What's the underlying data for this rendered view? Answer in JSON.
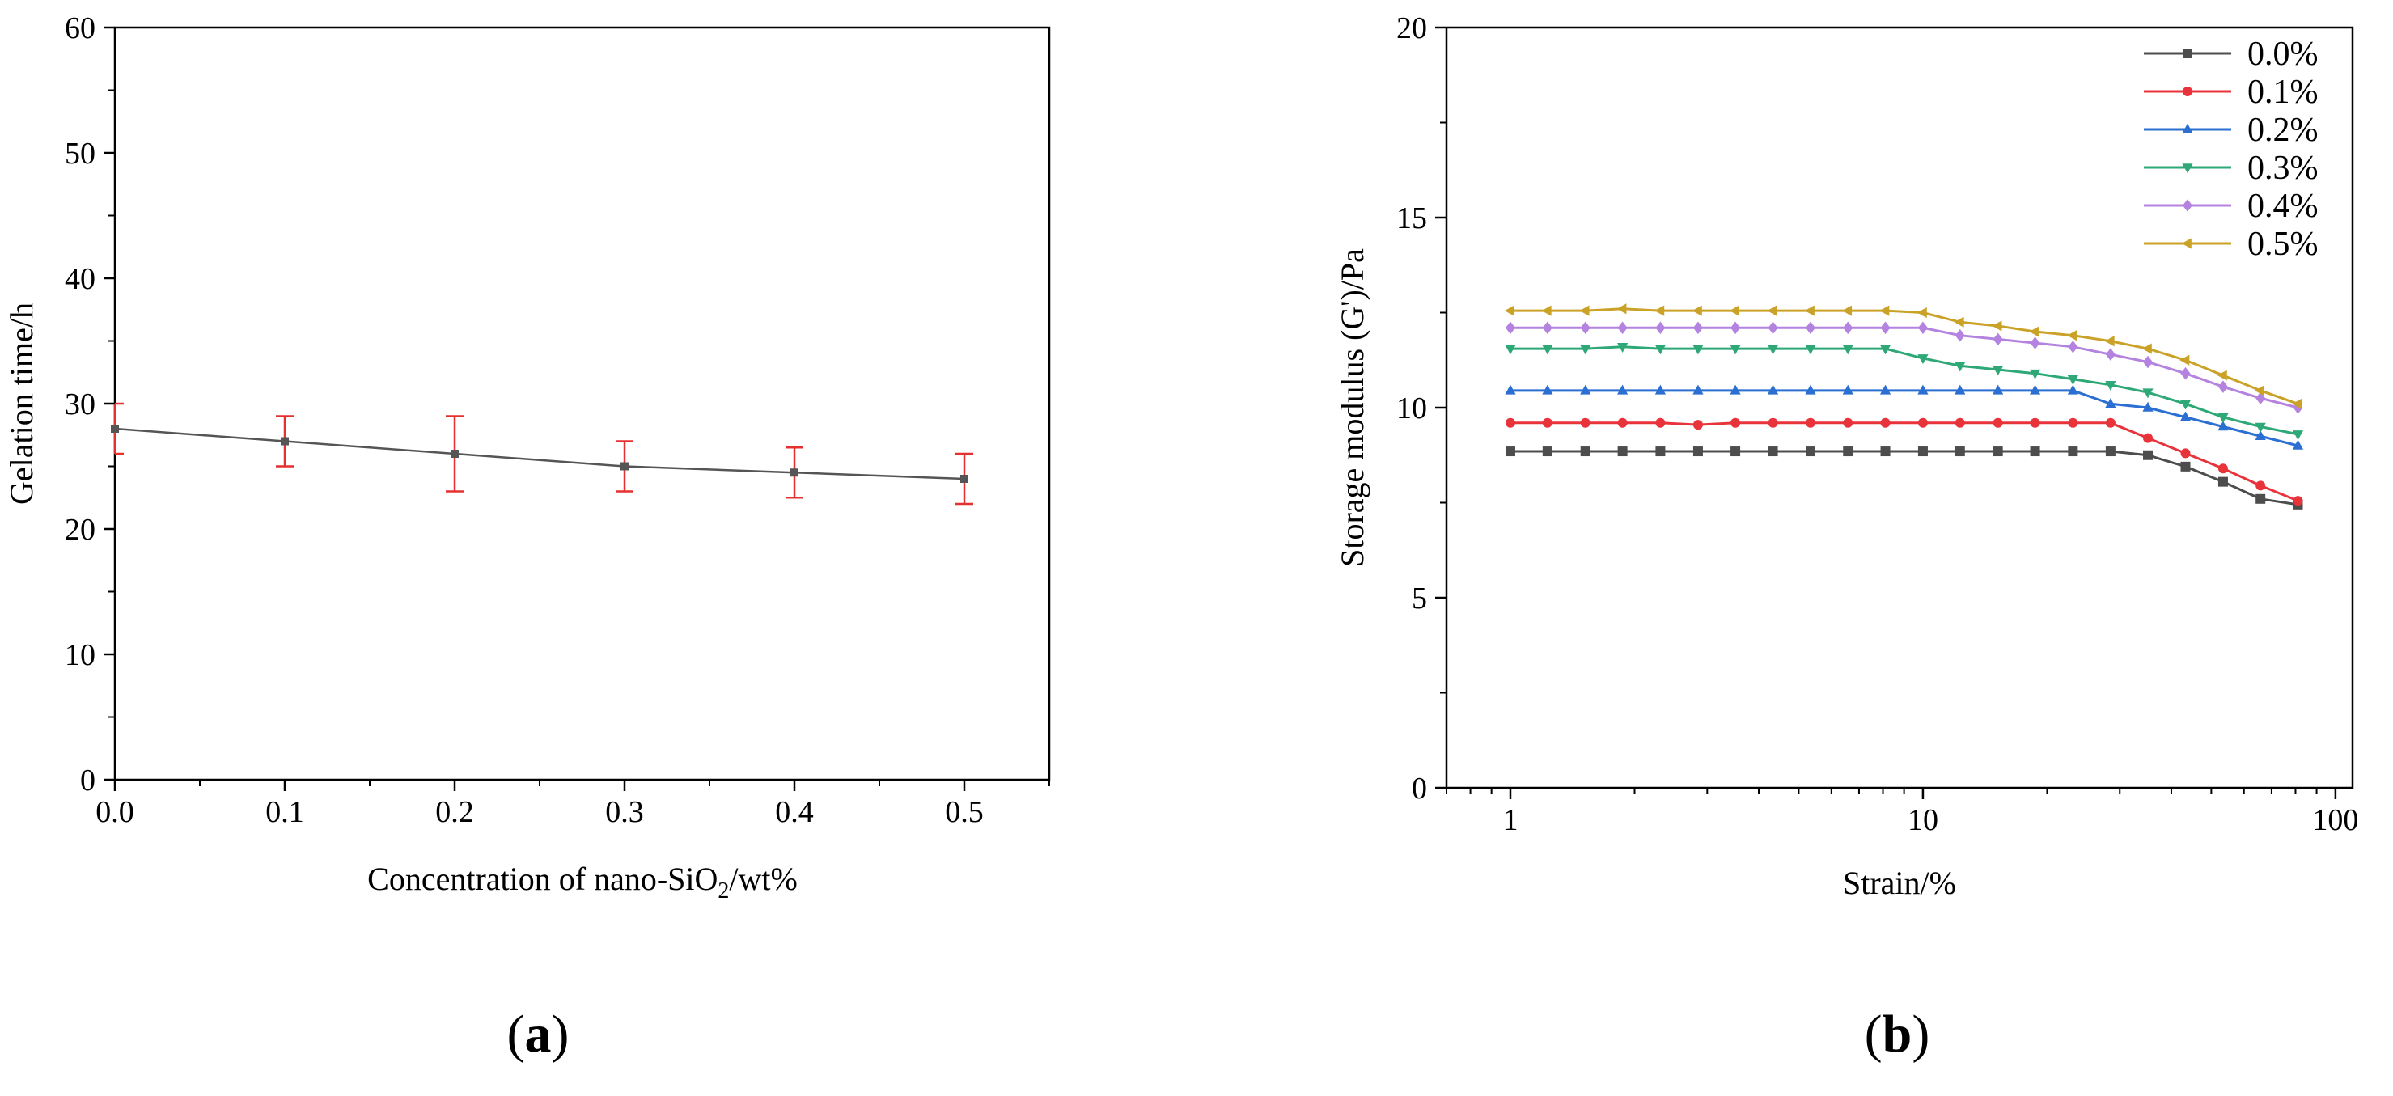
{
  "panels": [
    {
      "label_open": "(",
      "label_letter": "a",
      "label_close": ")"
    },
    {
      "label_open": "(",
      "label_letter": "b",
      "label_close": ")"
    }
  ],
  "chart_data": [
    {
      "type": "line",
      "xlabel_main": "Concentration of nano-SiO",
      "xlabel_sub": "2",
      "xlabel_tail": "/wt%",
      "ylabel": "Gelation time/h",
      "xlim": [
        0,
        0.55
      ],
      "ylim": [
        0,
        60
      ],
      "xticks": [
        0.0,
        0.1,
        0.2,
        0.3,
        0.4,
        0.5
      ],
      "xtick_labels": [
        "0.0",
        "0.1",
        "0.2",
        "0.3",
        "0.4",
        "0.5"
      ],
      "yticks": [
        0,
        10,
        20,
        30,
        40,
        50,
        60
      ],
      "ytick_labels": [
        "0",
        "10",
        "20",
        "30",
        "40",
        "50",
        "60"
      ],
      "series": [
        {
          "name": "Gelation time",
          "color": "#555555",
          "error_color": "#e53030",
          "x": [
            0.0,
            0.1,
            0.2,
            0.3,
            0.4,
            0.5
          ],
          "y": [
            28,
            27,
            26,
            25,
            24.5,
            24
          ],
          "error": [
            2,
            2,
            3,
            2,
            2,
            2
          ]
        }
      ]
    },
    {
      "type": "line",
      "xscale": "log",
      "xlabel": "Strain/%",
      "ylabel": "Storage modulus (G')/Pa",
      "xlim": [
        0.7,
        110
      ],
      "ylim": [
        0,
        20
      ],
      "xticks": [
        1,
        10,
        100
      ],
      "xtick_labels": [
        "1",
        "10",
        "100"
      ],
      "yticks": [
        0,
        5,
        10,
        15,
        20
      ],
      "ytick_labels": [
        "0",
        "5",
        "10",
        "15",
        "20"
      ],
      "legend_position": "top-right",
      "x": [
        1,
        1.23,
        1.52,
        1.87,
        2.31,
        2.85,
        3.51,
        4.33,
        5.34,
        6.58,
        8.11,
        10,
        12.3,
        15.2,
        18.7,
        23.1,
        28.5,
        35.1,
        43.3,
        53.4,
        65.8,
        81.1
      ],
      "series": [
        {
          "name": "0.0%",
          "color": "#4d4d4d",
          "marker": "square",
          "values": [
            8.85,
            8.85,
            8.85,
            8.85,
            8.85,
            8.85,
            8.85,
            8.85,
            8.85,
            8.85,
            8.85,
            8.85,
            8.85,
            8.85,
            8.85,
            8.85,
            8.85,
            8.75,
            8.45,
            8.05,
            7.6,
            7.45
          ]
        },
        {
          "name": "0.1%",
          "color": "#e8333a",
          "marker": "circle",
          "values": [
            9.6,
            9.6,
            9.6,
            9.6,
            9.6,
            9.55,
            9.6,
            9.6,
            9.6,
            9.6,
            9.6,
            9.6,
            9.6,
            9.6,
            9.6,
            9.6,
            9.6,
            9.2,
            8.8,
            8.4,
            7.95,
            7.55
          ]
        },
        {
          "name": "0.2%",
          "color": "#2a6fd1",
          "marker": "triangle-up",
          "values": [
            10.45,
            10.45,
            10.45,
            10.45,
            10.45,
            10.45,
            10.45,
            10.45,
            10.45,
            10.45,
            10.45,
            10.45,
            10.45,
            10.45,
            10.45,
            10.45,
            10.1,
            10.0,
            9.75,
            9.5,
            9.25,
            9.0
          ]
        },
        {
          "name": "0.3%",
          "color": "#2fa877",
          "marker": "triangle-down",
          "values": [
            11.55,
            11.55,
            11.55,
            11.6,
            11.55,
            11.55,
            11.55,
            11.55,
            11.55,
            11.55,
            11.55,
            11.3,
            11.1,
            11.0,
            10.9,
            10.75,
            10.6,
            10.4,
            10.1,
            9.75,
            9.5,
            9.3
          ]
        },
        {
          "name": "0.4%",
          "color": "#b483e0",
          "marker": "diamond",
          "values": [
            12.1,
            12.1,
            12.1,
            12.1,
            12.1,
            12.1,
            12.1,
            12.1,
            12.1,
            12.1,
            12.1,
            12.1,
            11.9,
            11.8,
            11.7,
            11.6,
            11.4,
            11.2,
            10.9,
            10.55,
            10.25,
            10.0
          ]
        },
        {
          "name": "0.5%",
          "color": "#c9a227",
          "marker": "left-triangle",
          "values": [
            12.55,
            12.55,
            12.55,
            12.6,
            12.55,
            12.55,
            12.55,
            12.55,
            12.55,
            12.55,
            12.55,
            12.5,
            12.25,
            12.15,
            12.0,
            11.9,
            11.75,
            11.55,
            11.25,
            10.85,
            10.45,
            10.1
          ]
        }
      ]
    }
  ]
}
